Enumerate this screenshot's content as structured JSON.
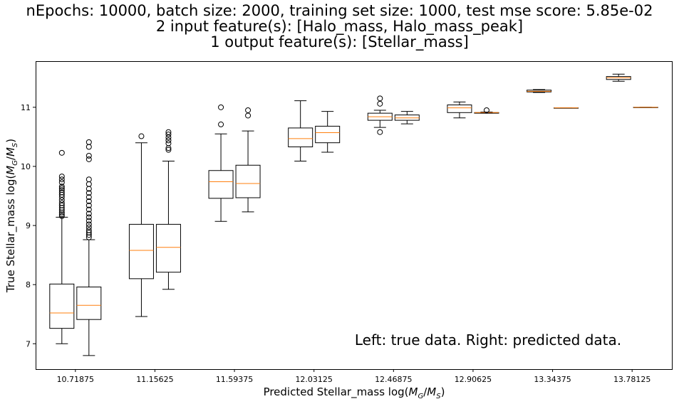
{
  "title_lines": [
    "nEpochs: 10000, batch size: 2000, training set size: 1000, test mse score: 5.85e-02",
    "2 input feature(s): [Halo_mass, Halo_mass_peak]",
    "1 output feature(s): [Stellar_mass]"
  ],
  "annotation": "Left: true data. Right: predicted data.",
  "colors": {
    "box": "#000000",
    "median": "#ff7f0e",
    "background": "#ffffff"
  },
  "chart_data": {
    "type": "boxplot",
    "xlabel": "Predicted Stellar_mass log(M_G/M_S)",
    "ylabel": "True Stellar_mass log(M_G/M_S)",
    "ylim": [
      6.57,
      11.78
    ],
    "yticks": [
      "7",
      "8",
      "9",
      "10",
      "11"
    ],
    "categories": [
      "10.71875",
      "11.15625",
      "11.59375",
      "12.03125",
      "12.46875",
      "12.90625",
      "13.34375",
      "13.78125"
    ],
    "series": [
      {
        "name": "true",
        "boxes": [
          {
            "whislo": 7.0,
            "q1": 7.26,
            "med": 7.52,
            "q3": 8.01,
            "whishi": 9.14,
            "fliers": [
              9.16,
              9.19,
              9.22,
              9.26,
              9.3,
              9.34,
              9.38,
              9.43,
              9.48,
              9.52,
              9.56,
              9.6,
              9.63,
              9.66,
              9.73,
              9.78,
              9.83,
              10.23
            ]
          },
          {
            "whislo": 7.46,
            "q1": 8.1,
            "med": 8.58,
            "q3": 9.02,
            "whishi": 10.4,
            "fliers": [
              10.51
            ]
          },
          {
            "whislo": 9.07,
            "q1": 9.46,
            "med": 9.74,
            "q3": 9.93,
            "whishi": 10.55,
            "fliers": [
              10.71,
              11.0
            ]
          },
          {
            "whislo": 10.09,
            "q1": 10.33,
            "med": 10.47,
            "q3": 10.65,
            "whishi": 11.11,
            "fliers": []
          },
          {
            "whislo": 10.66,
            "q1": 10.78,
            "med": 10.84,
            "q3": 10.9,
            "whishi": 10.95,
            "fliers": [
              10.58,
              11.06,
              11.15
            ]
          },
          {
            "whislo": 10.82,
            "q1": 10.91,
            "med": 10.99,
            "q3": 11.04,
            "whishi": 11.09,
            "fliers": []
          },
          {
            "whislo": 11.25,
            "q1": 11.26,
            "med": 11.27,
            "q3": 11.29,
            "whishi": 11.3,
            "fliers": []
          },
          {
            "whislo": 11.44,
            "q1": 11.47,
            "med": 11.5,
            "q3": 11.52,
            "whishi": 11.56,
            "fliers": []
          }
        ]
      },
      {
        "name": "predicted",
        "boxes": [
          {
            "whislo": 6.8,
            "q1": 7.41,
            "med": 7.65,
            "q3": 7.96,
            "whishi": 8.76,
            "fliers": [
              8.8,
              8.84,
              8.88,
              8.92,
              8.97,
              9.02,
              9.08,
              9.14,
              9.2,
              9.27,
              9.34,
              9.41,
              9.48,
              9.55,
              9.62,
              9.7,
              9.78,
              10.12,
              10.18,
              10.33,
              10.41
            ]
          },
          {
            "whislo": 7.92,
            "q1": 8.21,
            "med": 8.63,
            "q3": 9.02,
            "whishi": 10.09,
            "fliers": [
              10.28,
              10.31,
              10.39,
              10.44,
              10.49,
              10.54,
              10.58
            ]
          },
          {
            "whislo": 9.23,
            "q1": 9.47,
            "med": 9.71,
            "q3": 10.02,
            "whishi": 10.6,
            "fliers": [
              10.86,
              10.95
            ]
          },
          {
            "whislo": 10.24,
            "q1": 10.4,
            "med": 10.57,
            "q3": 10.68,
            "whishi": 10.93,
            "fliers": []
          },
          {
            "whislo": 10.72,
            "q1": 10.78,
            "med": 10.82,
            "q3": 10.87,
            "whishi": 10.93,
            "fliers": []
          },
          {
            "whislo": 10.9,
            "q1": 10.9,
            "med": 10.91,
            "q3": 10.91,
            "whishi": 10.92,
            "fliers": [
              10.95
            ]
          },
          {
            "whislo": 10.99,
            "q1": 10.99,
            "med": 10.99,
            "q3": 10.99,
            "whishi": 10.99,
            "fliers": []
          },
          {
            "whislo": 11.0,
            "q1": 11.0,
            "med": 11.0,
            "q3": 11.0,
            "whishi": 11.0,
            "fliers": []
          }
        ]
      }
    ]
  }
}
